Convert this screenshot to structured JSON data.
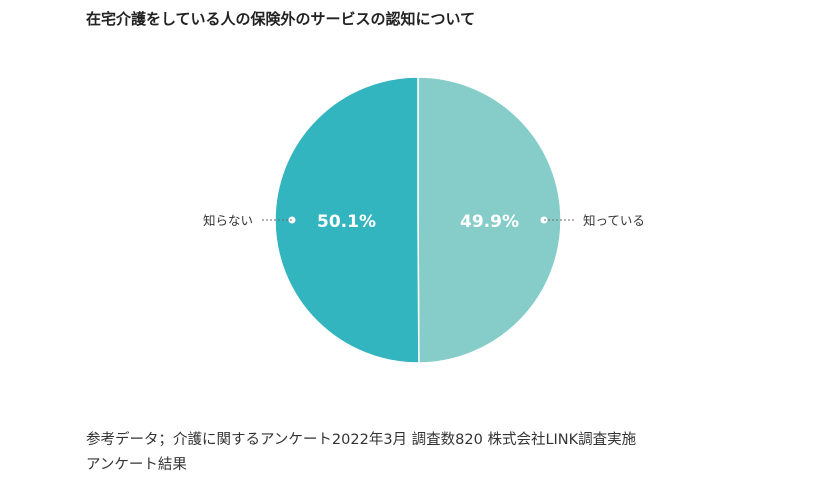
{
  "title": "在宅介護をしている人の保険外のサービスの認知について",
  "chart_data": {
    "type": "pie",
    "categories": [
      "知っている",
      "知らない"
    ],
    "values": [
      49.9,
      50.1
    ],
    "data_labels": [
      "49.9%",
      "50.1%"
    ],
    "colors": [
      "#86cdc9",
      "#33b5bf"
    ],
    "start": "12 o'clock",
    "direction": "clockwise"
  },
  "source": {
    "line1": "参考データ；介護に関するアンケート2022年3月 調査数820  株式会社LINK調査実施",
    "line2": "アンケート結果"
  }
}
